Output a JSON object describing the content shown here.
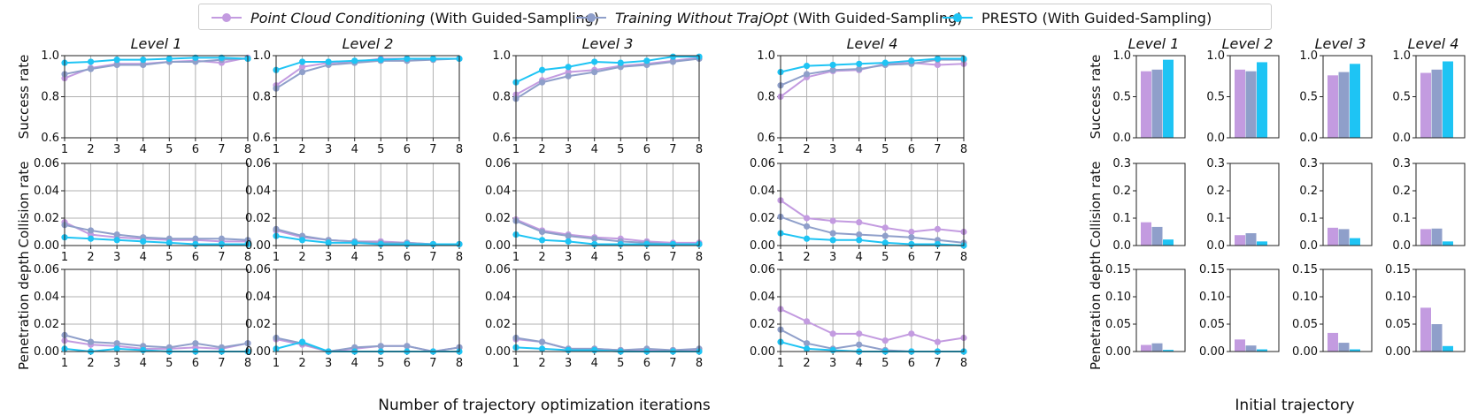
{
  "legend": {
    "items": [
      {
        "name_italic": "Point Cloud Conditioning",
        "name_rest": " (With Guided-Sampling)",
        "color": "#c39be0"
      },
      {
        "name_italic": "Training Without TrajOpt",
        "name_rest": " (With Guided-Sampling)",
        "color": "#8f9fca"
      },
      {
        "name_italic": "",
        "name_rest": "PRESTO (With Guided-Sampling)",
        "color": "#1ec4f4"
      }
    ]
  },
  "line_xlabel": "Number of trajectory optimization iterations",
  "bar_xlabel": "Initial trajectory",
  "chart_data": [
    {
      "type": "line",
      "group": "iterations",
      "levels": [
        "Level 1",
        "Level 2",
        "Level 3",
        "Level 4"
      ],
      "x": [
        1,
        2,
        3,
        4,
        5,
        6,
        7,
        8
      ],
      "series_names": [
        "Point Cloud Conditioning",
        "Training Without TrajOpt",
        "PRESTO"
      ],
      "metrics": [
        {
          "ylabel": "Success rate",
          "ylim": [
            0.6,
            1.0
          ],
          "yticks": [
            0.6,
            0.8,
            1.0
          ],
          "ytick_labels": [
            "0.6",
            "0.8",
            "1.0"
          ],
          "data": [
            [
              [
                0.89,
                0.94,
                0.96,
                0.96,
                0.97,
                0.975,
                0.965,
                0.99
              ],
              [
                0.91,
                0.935,
                0.955,
                0.955,
                0.97,
                0.97,
                0.98,
                0.985
              ],
              [
                0.965,
                0.97,
                0.98,
                0.98,
                0.985,
                0.99,
                0.99,
                0.985
              ]
            ],
            [
              [
                0.855,
                0.945,
                0.965,
                0.97,
                0.985,
                0.985,
                0.985,
                0.985
              ],
              [
                0.84,
                0.92,
                0.955,
                0.965,
                0.975,
                0.975,
                0.98,
                0.985
              ],
              [
                0.93,
                0.97,
                0.97,
                0.975,
                0.98,
                0.985,
                0.985,
                0.985
              ]
            ],
            [
              [
                0.81,
                0.88,
                0.92,
                0.93,
                0.95,
                0.96,
                0.975,
                0.99
              ],
              [
                0.79,
                0.87,
                0.9,
                0.92,
                0.945,
                0.955,
                0.97,
                0.985
              ],
              [
                0.87,
                0.93,
                0.945,
                0.97,
                0.965,
                0.975,
                0.995,
                0.995
              ]
            ],
            [
              [
                0.8,
                0.895,
                0.925,
                0.93,
                0.96,
                0.965,
                0.955,
                0.96
              ],
              [
                0.855,
                0.91,
                0.93,
                0.935,
                0.955,
                0.96,
                0.98,
                0.98
              ],
              [
                0.92,
                0.95,
                0.955,
                0.96,
                0.965,
                0.975,
                0.985,
                0.985
              ]
            ]
          ]
        },
        {
          "ylabel": "Collision rate",
          "ylim": [
            0.0,
            0.06
          ],
          "yticks": [
            0.0,
            0.02,
            0.04,
            0.06
          ],
          "ytick_labels": [
            "0.00",
            "0.02",
            "0.04",
            "0.06"
          ],
          "data": [
            [
              [
                0.017,
                0.008,
                0.006,
                0.005,
                0.004,
                0.004,
                0.003,
                0.003
              ],
              [
                0.015,
                0.011,
                0.008,
                0.006,
                0.005,
                0.005,
                0.005,
                0.004
              ],
              [
                0.006,
                0.005,
                0.004,
                0.003,
                0.002,
                0.001,
                0.001,
                0.001
              ]
            ],
            [
              [
                0.011,
                0.006,
                0.004,
                0.003,
                0.003,
                0.002,
                0.001,
                0.001
              ],
              [
                0.012,
                0.007,
                0.004,
                0.003,
                0.002,
                0.002,
                0.001,
                0.001
              ],
              [
                0.007,
                0.004,
                0.002,
                0.002,
                0.001,
                0.001,
                0.001,
                0.001
              ]
            ],
            [
              [
                0.019,
                0.011,
                0.008,
                0.006,
                0.005,
                0.003,
                0.002,
                0.002
              ],
              [
                0.018,
                0.01,
                0.007,
                0.005,
                0.003,
                0.002,
                0.001,
                0.001
              ],
              [
                0.008,
                0.004,
                0.003,
                0.001,
                0.001,
                0.001,
                0.001,
                0.001
              ]
            ],
            [
              [
                0.033,
                0.02,
                0.018,
                0.017,
                0.013,
                0.01,
                0.012,
                0.01
              ],
              [
                0.021,
                0.014,
                0.009,
                0.008,
                0.007,
                0.006,
                0.004,
                0.002
              ],
              [
                0.009,
                0.005,
                0.004,
                0.004,
                0.002,
                0.001,
                0.001,
                0.0
              ]
            ]
          ]
        },
        {
          "ylabel": "Penetration depth",
          "ylim": [
            0.0,
            0.06
          ],
          "yticks": [
            0.0,
            0.02,
            0.04,
            0.06
          ],
          "ytick_labels": [
            "0.00",
            "0.02",
            "0.04",
            "0.06"
          ],
          "data": [
            [
              [
                0.008,
                0.005,
                0.004,
                0.002,
                0.002,
                0.003,
                0.002,
                0.006
              ],
              [
                0.012,
                0.007,
                0.006,
                0.004,
                0.003,
                0.006,
                0.003,
                0.006
              ],
              [
                0.002,
                0.0,
                0.002,
                0.001,
                0.0,
                0.0,
                0.0,
                0.0
              ]
            ],
            [
              [
                0.009,
                0.005,
                0.0,
                0.002,
                0.004,
                0.004,
                0.0,
                0.003
              ],
              [
                0.01,
                0.006,
                0.0,
                0.003,
                0.004,
                0.004,
                0.0,
                0.003
              ],
              [
                0.002,
                0.007,
                0.0,
                0.0,
                0.0,
                0.0,
                0.0,
                0.0
              ]
            ],
            [
              [
                0.009,
                0.007,
                0.002,
                0.002,
                0.001,
                0.001,
                0.001,
                0.001
              ],
              [
                0.01,
                0.007,
                0.002,
                0.002,
                0.001,
                0.002,
                0.001,
                0.002
              ],
              [
                0.003,
                0.002,
                0.001,
                0.001,
                0.0,
                0.0,
                0.0,
                0.0
              ]
            ],
            [
              [
                0.031,
                0.022,
                0.013,
                0.013,
                0.008,
                0.013,
                0.007,
                0.01
              ],
              [
                0.016,
                0.006,
                0.002,
                0.005,
                0.001,
                0.0,
                0.0,
                0.0
              ],
              [
                0.007,
                0.002,
                0.001,
                0.0,
                0.0,
                0.0,
                0.0,
                0.0
              ]
            ]
          ]
        }
      ]
    },
    {
      "type": "bar",
      "group": "initial-trajectory",
      "levels": [
        "Level 1",
        "Level 2",
        "Level 3",
        "Level 4"
      ],
      "series_names": [
        "Point Cloud Conditioning",
        "Training Without TrajOpt",
        "PRESTO"
      ],
      "metrics": [
        {
          "ylabel": "Success rate",
          "ylim": [
            0.0,
            1.0
          ],
          "yticks": [
            0.0,
            0.5,
            1.0
          ],
          "ytick_labels": [
            "0.0",
            "0.5",
            "1.0"
          ],
          "data": [
            [
              0.81,
              0.83,
              0.95
            ],
            [
              0.83,
              0.81,
              0.92
            ],
            [
              0.76,
              0.8,
              0.9
            ],
            [
              0.79,
              0.83,
              0.93
            ]
          ]
        },
        {
          "ylabel": "Collision rate",
          "ylim": [
            0.0,
            0.3
          ],
          "yticks": [
            0.0,
            0.1,
            0.2,
            0.3
          ],
          "ytick_labels": [
            "0.0",
            "0.1",
            "0.2",
            "0.3"
          ],
          "data": [
            [
              0.085,
              0.068,
              0.022
            ],
            [
              0.038,
              0.045,
              0.015
            ],
            [
              0.065,
              0.06,
              0.027
            ],
            [
              0.06,
              0.062,
              0.015
            ]
          ]
        },
        {
          "ylabel": "Penetration depth",
          "ylim": [
            0.0,
            0.15
          ],
          "yticks": [
            0.0,
            0.05,
            0.1,
            0.15
          ],
          "ytick_labels": [
            "0.00",
            "0.05",
            "0.10",
            "0.15"
          ],
          "data": [
            [
              0.012,
              0.015,
              0.003
            ],
            [
              0.022,
              0.011,
              0.004
            ],
            [
              0.034,
              0.016,
              0.004
            ],
            [
              0.08,
              0.05,
              0.01
            ]
          ]
        }
      ]
    }
  ]
}
